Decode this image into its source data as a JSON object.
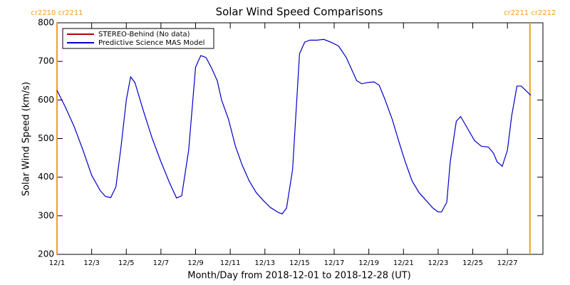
{
  "chart_data": {
    "type": "line",
    "title": "Solar Wind Speed Comparisons",
    "xlabel": "Month/Day from 2018-12-01 to 2018-12-28 (UT)",
    "ylabel": "Solar Wind Speed (km/s)",
    "xlim": [
      0,
      28.05
    ],
    "ylim": [
      200,
      800
    ],
    "yticks": [
      200,
      300,
      400,
      500,
      600,
      700,
      800
    ],
    "xticks": [
      {
        "value": 0,
        "label": "12/1"
      },
      {
        "value": 2,
        "label": "12/3"
      },
      {
        "value": 4,
        "label": "12/5"
      },
      {
        "value": 6,
        "label": "12/7"
      },
      {
        "value": 8,
        "label": "12/9"
      },
      {
        "value": 10,
        "label": "12/11"
      },
      {
        "value": 12,
        "label": "12/13"
      },
      {
        "value": 14,
        "label": "12/15"
      },
      {
        "value": 16,
        "label": "12/17"
      },
      {
        "value": 18,
        "label": "12/19"
      },
      {
        "value": 20,
        "label": "12/21"
      },
      {
        "value": 22,
        "label": "12/23"
      },
      {
        "value": 24,
        "label": "12/25"
      },
      {
        "value": 26,
        "label": "12/27"
      }
    ],
    "annotations": [
      {
        "text": "cr2210 cr2211",
        "x": 0,
        "color": "#f0a020"
      },
      {
        "text": "cr2211 cr2212",
        "x": 27.3,
        "color": "#f0a020"
      }
    ],
    "legend_position": "upper left",
    "series": [
      {
        "name": "STEREO-Behind (No data)",
        "color": "#b00000",
        "x": [],
        "values": []
      },
      {
        "name": "Predictive Science MAS Model",
        "color": "#0000c8",
        "x": [
          0,
          0.5,
          1.0,
          1.5,
          2.0,
          2.5,
          2.8,
          3.1,
          3.4,
          3.7,
          4.0,
          4.25,
          4.5,
          5.0,
          5.5,
          6.0,
          6.5,
          6.9,
          7.2,
          7.6,
          8.0,
          8.3,
          8.6,
          8.9,
          9.25,
          9.5,
          9.9,
          10.3,
          10.7,
          11.1,
          11.5,
          11.9,
          12.3,
          12.8,
          13.0,
          13.25,
          13.6,
          14.0,
          14.3,
          14.6,
          15.0,
          15.4,
          15.8,
          16.25,
          16.7,
          17.0,
          17.3,
          17.6,
          17.9,
          18.3,
          18.6,
          18.9,
          19.35,
          19.75,
          20.1,
          20.5,
          20.9,
          21.3,
          21.7,
          22.0,
          22.2,
          22.5,
          22.7,
          23.05,
          23.3,
          23.65,
          24.1,
          24.5,
          24.9,
          25.2,
          25.4,
          25.7,
          26.0,
          26.25,
          26.55,
          26.8,
          27.35
        ],
        "values": [
          625,
          580,
          530,
          470,
          405,
          365,
          350,
          347,
          375,
          480,
          600,
          660,
          645,
          570,
          500,
          440,
          385,
          346,
          352,
          470,
          685,
          715,
          710,
          685,
          650,
          600,
          550,
          480,
          430,
          390,
          360,
          340,
          322,
          308,
          305,
          320,
          420,
          720,
          750,
          755,
          755,
          757,
          750,
          740,
          710,
          680,
          650,
          642,
          645,
          647,
          638,
          605,
          550,
          490,
          440,
          390,
          360,
          340,
          320,
          310,
          310,
          335,
          440,
          545,
          557,
          530,
          495,
          480,
          478,
          462,
          440,
          428,
          470,
          560,
          636,
          636,
          612
        ]
      }
    ]
  }
}
